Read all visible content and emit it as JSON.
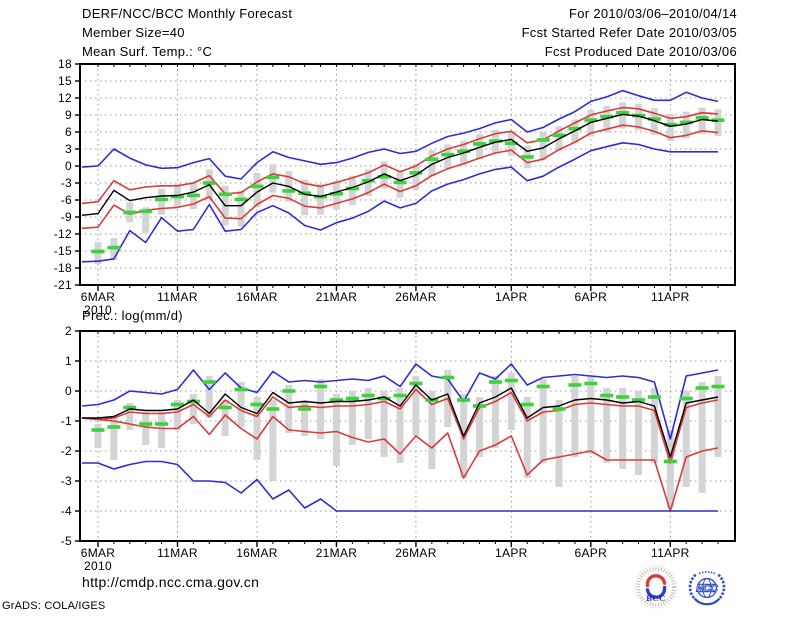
{
  "header": {
    "title": "DERF/NCC/BCC Monthly Forecast",
    "member_size": "Member Size=40",
    "panel1_title": "Mean Surf. Temp.: °C",
    "for_range": "For 2010/03/06–2010/04/14",
    "fcst_refer": "Fcst Started Refer Date 2010/03/05",
    "fcst_produced": "Fcst Produced Date 2010/03/06"
  },
  "footer": {
    "url": "http://cmdp.ncc.cma.gov.cn",
    "credit": "GrADS: COLA/IGES",
    "logos": [
      {
        "label": "BCC"
      },
      {
        "label": "NCC"
      }
    ]
  },
  "colors": {
    "blue": "#2d2dd2",
    "red": "#d93b3b",
    "green": "#3cd23c",
    "black": "#000000",
    "gray_bar": "#d4d4d4",
    "grid": "#999999",
    "text": "#000000",
    "bcc_navy": "#1a2f8a",
    "ncc_blue": "#2a4fc4"
  },
  "chart_data": [
    {
      "type": "line",
      "name": "temperature",
      "title": "Mean Surf. Temp.: °C",
      "n_points": 40,
      "ylim": [
        -21,
        18
      ],
      "ytick_step": 3,
      "x_year": "2010",
      "x_ticks": [
        {
          "i": 0,
          "label": "6MAR"
        },
        {
          "i": 5,
          "label": "11MAR"
        },
        {
          "i": 10,
          "label": "16MAR"
        },
        {
          "i": 15,
          "label": "21MAR"
        },
        {
          "i": 20,
          "label": "26MAR"
        },
        {
          "i": 26,
          "label": "1APR"
        },
        {
          "i": 31,
          "label": "6APR"
        },
        {
          "i": 36,
          "label": "11APR"
        }
      ],
      "series": [
        {
          "name": "ensemble-max",
          "color_key": "blue",
          "lead": -0.2,
          "values": [
            0.0,
            3.0,
            1.4,
            0.2,
            -0.4,
            -0.3,
            0.6,
            1.3,
            -1.8,
            -2.3,
            0.6,
            2.5,
            1.5,
            0.9,
            0.3,
            0.6,
            1.4,
            2.4,
            3.0,
            2.2,
            2.6,
            4.0,
            5.2,
            5.8,
            6.6,
            7.6,
            8.2,
            6.0,
            6.8,
            8.3,
            9.6,
            11.4,
            12.2,
            13.3,
            12.4,
            11.6,
            11.6,
            13.0,
            12.0,
            11.4
          ]
        },
        {
          "name": "upper-quartile",
          "color_key": "red",
          "lead": -6.6,
          "values": [
            -6.3,
            -2.6,
            -4.2,
            -3.7,
            -3.5,
            -3.5,
            -3.0,
            -1.7,
            -4.9,
            -4.7,
            -2.8,
            -1.4,
            -1.9,
            -3.1,
            -3.6,
            -2.9,
            -2.1,
            -1.2,
            0.2,
            -1.0,
            0.0,
            1.8,
            3.0,
            3.8,
            4.8,
            5.7,
            6.1,
            4.1,
            4.6,
            6.2,
            7.6,
            9.0,
            9.7,
            10.3,
            10.1,
            9.3,
            8.4,
            8.7,
            9.4,
            9.2
          ]
        },
        {
          "name": "lower-quartile",
          "color_key": "red",
          "lead": -11.0,
          "values": [
            -10.8,
            -6.9,
            -8.5,
            -7.8,
            -7.5,
            -7.3,
            -6.7,
            -5.4,
            -9.2,
            -9.3,
            -6.8,
            -5.2,
            -5.7,
            -7.1,
            -7.4,
            -6.6,
            -5.8,
            -4.7,
            -3.2,
            -4.5,
            -3.5,
            -1.7,
            -0.5,
            0.4,
            1.4,
            2.3,
            2.8,
            0.6,
            1.2,
            2.9,
            4.2,
            5.8,
            6.5,
            7.2,
            6.9,
            6.1,
            5.0,
            5.4,
            6.2,
            5.9
          ]
        },
        {
          "name": "ensemble-min",
          "color_key": "blue",
          "lead": -16.9,
          "values": [
            -16.8,
            -16.4,
            -11.4,
            -13.5,
            -9.1,
            -11.5,
            -11.2,
            -6.8,
            -11.5,
            -11.2,
            -8.2,
            -7.0,
            -8.3,
            -10.5,
            -11.3,
            -10.0,
            -9.2,
            -8.0,
            -6.2,
            -7.4,
            -6.6,
            -4.4,
            -3.2,
            -2.4,
            -1.4,
            -0.6,
            -0.2,
            -2.6,
            -1.8,
            -0.2,
            1.2,
            2.7,
            3.4,
            4.1,
            3.8,
            3.0,
            2.5,
            2.5,
            2.5,
            2.5
          ]
        },
        {
          "name": "ensemble-mean",
          "color_key": "black",
          "lead": -8.7,
          "values": [
            -8.4,
            -4.3,
            -6.1,
            -5.6,
            -5.3,
            -5.2,
            -4.6,
            -3.3,
            -7.0,
            -7.0,
            -4.6,
            -3.0,
            -3.6,
            -5.0,
            -5.4,
            -4.6,
            -3.8,
            -2.8,
            -1.4,
            -2.6,
            -1.6,
            0.3,
            1.5,
            2.3,
            3.3,
            4.2,
            4.7,
            2.6,
            3.2,
            4.8,
            6.2,
            7.7,
            8.4,
            9.1,
            8.8,
            8.0,
            7.0,
            7.4,
            8.2,
            7.9
          ]
        }
      ],
      "dashes": {
        "name": "daily-observation",
        "color_key": "green",
        "values": [
          -15.1,
          -14.4,
          -8.2,
          -8.0,
          -5.9,
          -5.4,
          -5.2,
          -3.0,
          -5.0,
          -5.9,
          -3.6,
          -2.0,
          -4.4,
          -4.8,
          -5.4,
          -4.9,
          -4.0,
          -2.6,
          -1.9,
          -2.9,
          -1.2,
          1.2,
          2.0,
          2.6,
          3.9,
          4.4,
          4.0,
          1.6,
          4.6,
          5.4,
          6.6,
          8.1,
          8.7,
          9.4,
          8.9,
          8.3,
          7.3,
          7.7,
          8.5,
          8.1
        ]
      },
      "bars": {
        "name": "ensemble-spread",
        "color_key": "gray_bar",
        "low": [
          -17.3,
          -16.6,
          -9.9,
          -11.8,
          -8.6,
          -7.3,
          -7.6,
          -5.9,
          -10.5,
          -10.7,
          -7.3,
          -4.7,
          -6.3,
          -8.7,
          -8.6,
          -7.7,
          -6.9,
          -5.3,
          -4.0,
          -5.6,
          -4.2,
          -1.8,
          -0.6,
          0.2,
          1.2,
          2.2,
          1.8,
          -0.4,
          1.0,
          2.6,
          4.0,
          5.2,
          5.9,
          6.6,
          6.3,
          5.5,
          4.4,
          4.9,
          5.6,
          5.3
        ],
        "high": [
          -13.4,
          -12.7,
          -6.4,
          -7.3,
          -4.0,
          -3.2,
          -2.8,
          -0.6,
          -3.5,
          -4.3,
          -1.2,
          0.3,
          -0.9,
          -2.4,
          -3.2,
          -2.6,
          -1.7,
          -0.6,
          0.8,
          -0.8,
          0.4,
          2.8,
          3.8,
          4.4,
          5.6,
          6.4,
          6.2,
          3.6,
          6.0,
          7.0,
          8.2,
          9.9,
          10.6,
          11.2,
          11.0,
          10.2,
          9.2,
          9.6,
          10.3,
          10.0
        ]
      }
    },
    {
      "type": "line",
      "name": "precipitation",
      "title": "Prec.: log(mm/d)",
      "n_points": 40,
      "ylim": [
        -5,
        2
      ],
      "ytick_step": 1,
      "x_year": "2010",
      "x_ticks": [
        {
          "i": 0,
          "label": "6MAR"
        },
        {
          "i": 5,
          "label": "11MAR"
        },
        {
          "i": 10,
          "label": "16MAR"
        },
        {
          "i": 15,
          "label": "21MAR"
        },
        {
          "i": 20,
          "label": "26MAR"
        },
        {
          "i": 26,
          "label": "1APR"
        },
        {
          "i": 31,
          "label": "6APR"
        },
        {
          "i": 36,
          "label": "11APR"
        }
      ],
      "series": [
        {
          "name": "ensemble-max",
          "color_key": "blue",
          "lead": -0.5,
          "values": [
            -0.45,
            -0.3,
            0.0,
            -0.05,
            -0.1,
            0.05,
            0.7,
            0.05,
            0.6,
            0.1,
            -0.05,
            0.65,
            0.3,
            0.35,
            0.3,
            0.35,
            0.4,
            0.35,
            0.5,
            0.15,
            0.9,
            0.5,
            0.4,
            -0.35,
            0.6,
            0.4,
            0.9,
            0.2,
            0.45,
            0.5,
            0.55,
            0.5,
            0.45,
            0.5,
            0.45,
            0.3,
            -1.6,
            0.5,
            0.6,
            0.7
          ]
        },
        {
          "name": "upper-quartile",
          "color_key": "red",
          "lead": -0.9,
          "values": [
            -0.95,
            -0.9,
            -0.7,
            -0.75,
            -0.75,
            -0.7,
            -0.45,
            -0.85,
            -0.3,
            -0.65,
            -0.85,
            -0.2,
            -0.55,
            -0.5,
            -0.55,
            -0.5,
            -0.5,
            -0.45,
            -0.35,
            -0.6,
            0.05,
            -0.45,
            -0.25,
            -1.6,
            -0.55,
            -0.35,
            -0.05,
            -1.0,
            -0.7,
            -0.65,
            -0.45,
            -0.4,
            -0.45,
            -0.5,
            -0.5,
            -0.65,
            -2.4,
            -0.55,
            -0.4,
            -0.3
          ]
        },
        {
          "name": "lower-quartile",
          "color_key": "red",
          "lead": -0.9,
          "values": [
            -0.95,
            -1.0,
            -1.1,
            -1.2,
            -1.25,
            -1.25,
            -0.85,
            -1.45,
            -0.8,
            -1.25,
            -1.6,
            -0.85,
            -1.3,
            -1.35,
            -1.4,
            -1.35,
            -1.55,
            -1.7,
            -1.6,
            -2.1,
            -1.5,
            -1.9,
            -1.4,
            -2.9,
            -2.0,
            -1.8,
            -1.5,
            -2.8,
            -2.3,
            -2.2,
            -2.1,
            -2.0,
            -2.3,
            -2.3,
            -2.3,
            -2.3,
            -4.0,
            -2.2,
            -2.0,
            -1.9
          ]
        },
        {
          "name": "ensemble-min",
          "color_key": "blue",
          "lead": -2.4,
          "values": [
            -2.4,
            -2.6,
            -2.45,
            -2.35,
            -2.35,
            -2.45,
            -3.0,
            -3.0,
            -3.05,
            -3.4,
            -2.95,
            -3.6,
            -3.3,
            -3.9,
            -3.6,
            -4.0,
            -4.0,
            -4.0,
            -4.0,
            -4.0,
            -4.0,
            -4.0,
            -4.0,
            -4.0,
            -4.0,
            -4.0,
            -4.0,
            -4.0,
            -4.0,
            -4.0,
            -4.0,
            -4.0,
            -4.0,
            -4.0,
            -4.0,
            -4.0,
            -4.0,
            -4.0,
            -4.0,
            -4.0
          ]
        },
        {
          "name": "ensemble-mean",
          "color_key": "black",
          "lead": -0.9,
          "values": [
            -0.9,
            -0.85,
            -0.6,
            -0.65,
            -0.65,
            -0.6,
            -0.3,
            -0.75,
            -0.1,
            -0.55,
            -0.75,
            -0.05,
            -0.4,
            -0.35,
            -0.4,
            -0.35,
            -0.35,
            -0.3,
            -0.2,
            -0.5,
            0.2,
            -0.3,
            -0.1,
            -1.5,
            -0.4,
            -0.2,
            0.1,
            -0.9,
            -0.55,
            -0.5,
            -0.3,
            -0.25,
            -0.3,
            -0.4,
            -0.35,
            -0.5,
            -2.2,
            -0.4,
            -0.3,
            -0.2
          ]
        }
      ],
      "dashes": {
        "name": "daily-observation",
        "color_key": "green",
        "values": [
          -1.3,
          -1.2,
          -0.55,
          -1.1,
          -1.1,
          -0.45,
          -0.35,
          0.3,
          -0.55,
          0.05,
          -0.45,
          -0.6,
          0.0,
          -0.6,
          0.15,
          -0.3,
          -0.25,
          -0.15,
          -0.25,
          -0.15,
          0.25,
          -0.3,
          0.45,
          -0.3,
          -0.5,
          0.3,
          0.35,
          -0.45,
          0.15,
          -0.6,
          0.2,
          0.25,
          -0.15,
          -0.2,
          -0.3,
          -0.2,
          -2.35,
          -0.25,
          0.1,
          0.15
        ]
      },
      "bars": {
        "name": "ensemble-spread",
        "color_key": "gray_bar",
        "low": [
          -1.9,
          -2.3,
          -1.3,
          -1.8,
          -1.9,
          -1.3,
          -1.1,
          -0.9,
          -1.5,
          -1.2,
          -2.3,
          -3.0,
          -1.4,
          -1.5,
          -1.6,
          -2.5,
          -1.8,
          -1.6,
          -2.2,
          -2.4,
          -1.5,
          -2.6,
          -1.2,
          -2.9,
          -2.2,
          -1.9,
          -1.3,
          -2.9,
          -2.4,
          -3.2,
          -2.2,
          -2.1,
          -2.4,
          -2.6,
          -2.8,
          -2.4,
          -3.9,
          -3.2,
          -3.4,
          -2.2
        ],
        "high": [
          -1.1,
          -0.9,
          -0.4,
          -0.7,
          -0.7,
          -0.3,
          -0.1,
          0.5,
          -0.3,
          0.3,
          -0.2,
          -0.3,
          0.2,
          -0.3,
          0.4,
          -0.1,
          0.0,
          0.1,
          0.0,
          0.1,
          0.5,
          0.0,
          0.7,
          -0.1,
          -0.2,
          0.5,
          0.6,
          -0.2,
          0.4,
          -0.3,
          0.5,
          0.5,
          0.1,
          0.1,
          0.0,
          0.1,
          -1.3,
          0.0,
          0.3,
          0.5
        ]
      }
    }
  ]
}
